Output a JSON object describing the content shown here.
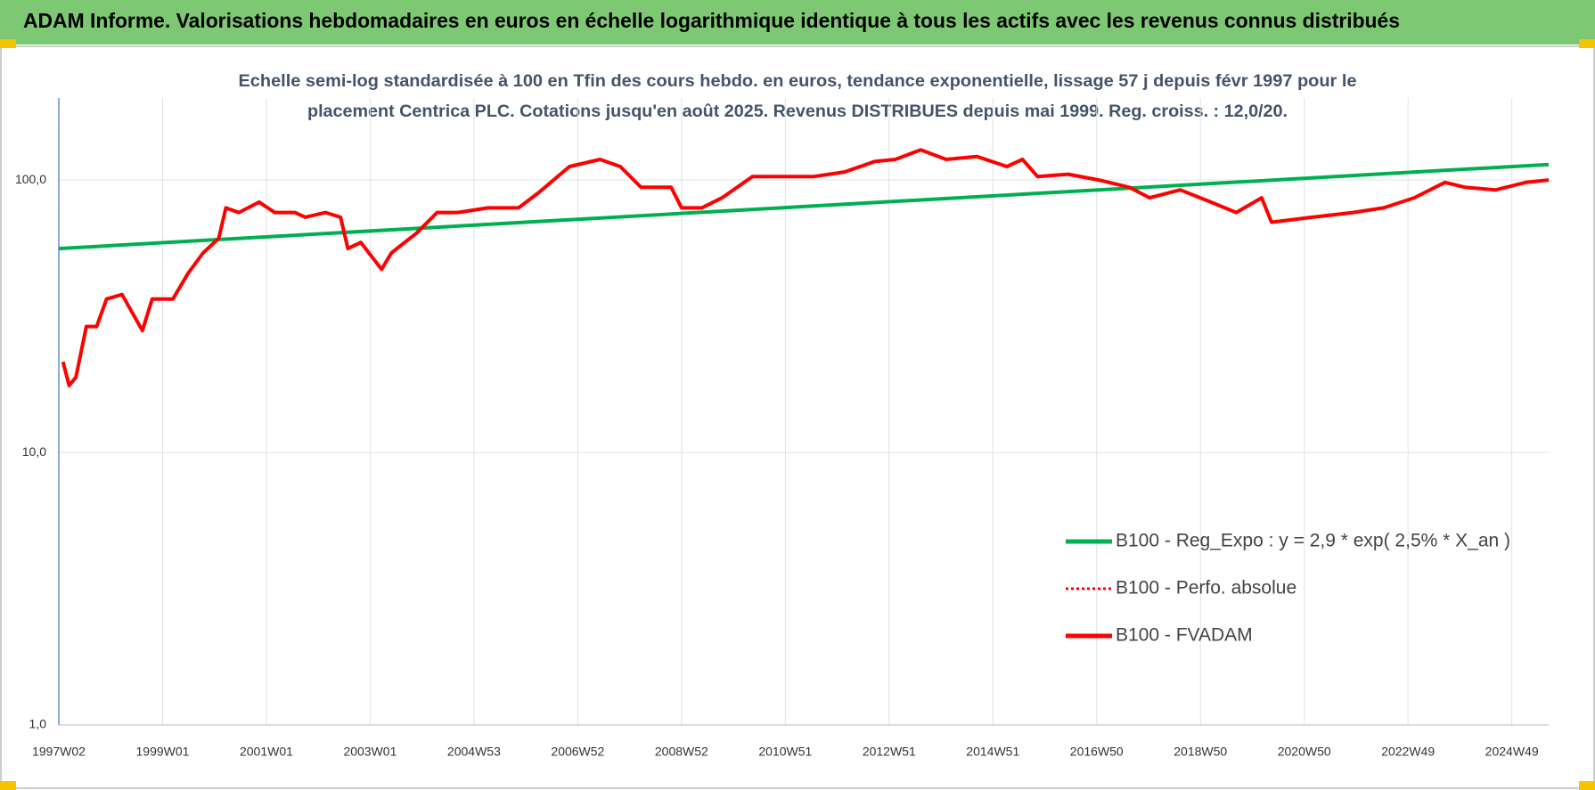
{
  "header": {
    "title": "ADAM Informe. Valorisations hebdomadaires en euros en échelle logarithmique identique à tous les actifs avec les revenus connus distribués"
  },
  "chart_data": {
    "type": "line",
    "title": [
      "Echelle semi-log standardisée à 100 en Tfin des cours hebdo. en euros, tendance exponentielle, lissage 57 j depuis févr 1997 pour le",
      "placement Centrica PLC. Cotations jusqu'en août 2025. Revenus DISTRIBUES depuis mai 1999. Reg. croiss. : 12,0/20."
    ],
    "log_scale": true,
    "grid": true,
    "legend": "lower right",
    "xlim": [
      1997.0,
      2025.71
    ],
    "xticks": [
      {
        "value": 1997.0,
        "label": "1997W02"
      },
      {
        "value": 1999.0,
        "label": "1999W01"
      },
      {
        "value": 2001.0,
        "label": "2001W01"
      },
      {
        "value": 2003.0,
        "label": "2003W01"
      },
      {
        "value": 2005.0,
        "label": "2004W53"
      },
      {
        "value": 2007.0,
        "label": "2006W52"
      },
      {
        "value": 2009.0,
        "label": "2008W52"
      },
      {
        "value": 2011.0,
        "label": "2010W51"
      },
      {
        "value": 2013.0,
        "label": "2012W51"
      },
      {
        "value": 2015.0,
        "label": "2014W51"
      },
      {
        "value": 2017.0,
        "label": "2016W50"
      },
      {
        "value": 2019.0,
        "label": "2018W50"
      },
      {
        "value": 2021.0,
        "label": "2020W50"
      },
      {
        "value": 2023.0,
        "label": "2022W49"
      },
      {
        "value": 2025.0,
        "label": "2024W49"
      }
    ],
    "ylim": [
      1,
      200
    ],
    "yticks": [
      {
        "value": 1,
        "label": "1,0"
      },
      {
        "value": 10,
        "label": "10,0"
      },
      {
        "value": 100,
        "label": "100,0"
      }
    ],
    "series": [
      {
        "name": "B100 - Reg_Expo : y = 2,9 * exp( 2,5% *  X_an )",
        "color": "#00b050",
        "dash": false,
        "x": [
          1997.0,
          2025.71
        ],
        "values": [
          56,
          114
        ]
      },
      {
        "name": "B100 - Perfo. absolue",
        "color": "#ff0000",
        "dash": true,
        "x": [],
        "values": []
      },
      {
        "name": "B100 - FVADAM",
        "color": "#ff0000",
        "dash": false,
        "x": [
          1997.08,
          1997.2,
          1997.33,
          1997.53,
          1997.73,
          1997.92,
          1998.22,
          1998.61,
          1998.8,
          1999.2,
          1999.49,
          1999.78,
          2000.08,
          2000.22,
          2000.47,
          2000.86,
          2001.16,
          2001.55,
          2001.75,
          2002.14,
          2002.43,
          2002.57,
          2002.82,
          2003.22,
          2003.41,
          2003.9,
          2004.29,
          2004.69,
          2005.27,
          2005.86,
          2006.25,
          2006.84,
          2007.43,
          2007.82,
          2008.22,
          2008.8,
          2009.0,
          2009.39,
          2009.78,
          2010.37,
          2010.96,
          2011.55,
          2012.14,
          2012.73,
          2013.12,
          2013.61,
          2014.1,
          2014.69,
          2015.27,
          2015.57,
          2015.86,
          2016.45,
          2017.04,
          2017.63,
          2018.02,
          2018.61,
          2019.2,
          2019.69,
          2020.18,
          2020.37,
          2021.16,
          2021.94,
          2022.53,
          2023.12,
          2023.71,
          2024.1,
          2024.69,
          2025.27,
          2025.71
        ],
        "values": [
          21.5,
          17.6,
          18.9,
          29,
          29,
          36.6,
          38,
          28,
          36.6,
          36.6,
          45.4,
          54,
          61,
          79,
          76,
          83,
          76,
          76,
          73,
          76,
          73,
          56,
          59,
          47,
          54,
          64,
          76,
          76,
          79,
          79,
          90,
          112,
          119,
          112,
          94,
          94,
          79,
          79,
          86,
          103,
          103,
          103,
          107,
          117,
          119,
          129,
          119,
          122,
          112,
          119,
          103,
          105,
          100,
          94,
          86,
          92,
          83,
          76,
          86,
          70,
          73,
          76,
          79,
          86,
          98,
          94,
          92,
          98,
          100
        ]
      }
    ]
  }
}
